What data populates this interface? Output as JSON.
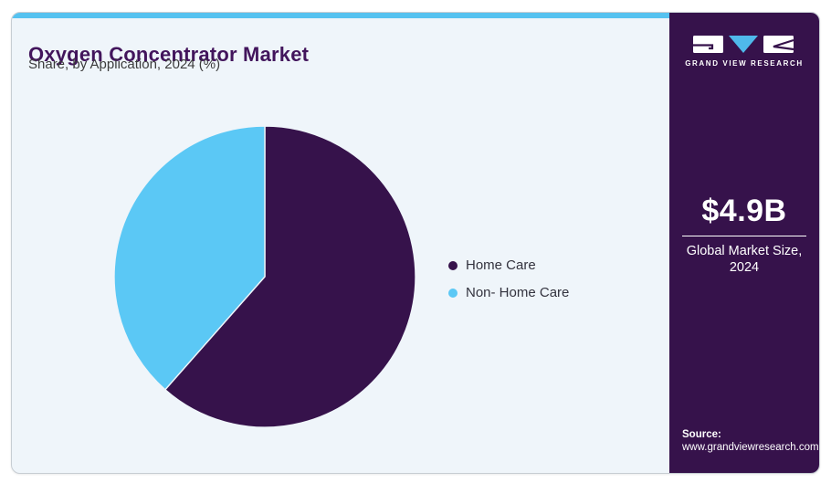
{
  "header": {
    "title": "Oxygen Concentrator Market",
    "subtitle": "Share, by Application, 2024 (%)"
  },
  "chart_data": {
    "type": "pie",
    "title": "Oxygen Concentrator Market Share, by Application, 2024 (%)",
    "unit": "%",
    "start_angle_deg": 0,
    "direction": "clockwise",
    "legend_position": "right",
    "segments": [
      {
        "label": "Home Care",
        "value": 61.5,
        "color": "#36124B"
      },
      {
        "label": "Non- Home Care",
        "value": 38.5,
        "color": "#5BC8F5"
      }
    ]
  },
  "sidebar": {
    "logo": {
      "icon": "gvr-logo-icon",
      "text": "GRAND VIEW RESEARCH"
    },
    "market_size": {
      "value": "$4.9B",
      "label_line1": "Global Market Size,",
      "label_line2": "2024"
    },
    "source": {
      "label": "Source:",
      "url": "www.grandviewresearch.com"
    }
  },
  "colors": {
    "accent_bar": "#55C2F0",
    "card_background": "#EFF5FA",
    "sidebar_background": "#36124B",
    "title_text": "#42155C",
    "pie_home_care": "#36124B",
    "pie_non_home_care": "#5BC8F5",
    "logo_triangle": "#4FB9EA"
  }
}
